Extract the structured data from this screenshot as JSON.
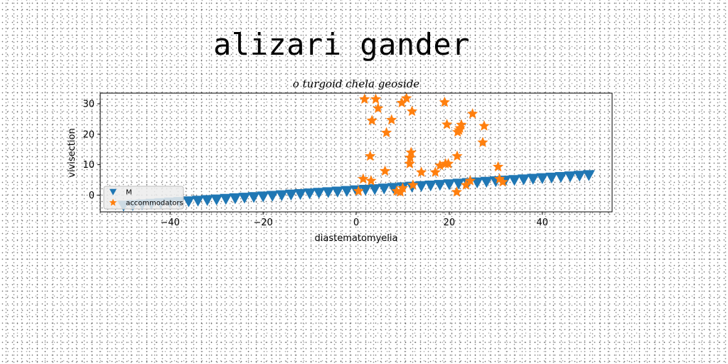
{
  "page_title": "alizari gander",
  "colors": {
    "series_M": "#1f77b4",
    "series_accommodators": "#ff7f0e",
    "axes": "#000000"
  },
  "chart_data": {
    "type": "scatter",
    "title": "o turgoid chela geoside",
    "xlabel": "diastematomyelia",
    "ylabel": "vivisection",
    "xlim": [
      -55,
      55
    ],
    "ylim": [
      -5.5,
      33.5
    ],
    "xticks": [
      -40,
      -20,
      0,
      20,
      40
    ],
    "yticks": [
      0,
      10,
      20,
      30
    ],
    "xtick_labels": [
      "−40",
      "−20",
      "0",
      "20",
      "40"
    ],
    "ytick_labels": [
      "0",
      "10",
      "20",
      "30"
    ],
    "grid": false,
    "legend_position": "lower-left",
    "series": [
      {
        "name": "M",
        "marker": "triangle-down",
        "color": "#1f77b4",
        "x": [
          -50,
          -48,
          -46,
          -44,
          -42,
          -40,
          -38,
          -36,
          -34,
          -32,
          -30,
          -28,
          -26,
          -24,
          -22,
          -20,
          -18,
          -16,
          -14,
          -12,
          -10,
          -8,
          -6,
          -4,
          -2,
          0,
          2,
          4,
          6,
          8,
          10,
          12,
          14,
          16,
          18,
          20,
          22,
          24,
          26,
          28,
          30,
          32,
          34,
          36,
          38,
          40,
          42,
          44,
          46,
          48,
          50
        ],
        "y": [
          -3.5,
          -3.3,
          -3.1,
          -2.9,
          -2.7,
          -2.5,
          -2.3,
          -2.1,
          -1.9,
          -1.7,
          -1.5,
          -1.3,
          -1.1,
          -0.9,
          -0.7,
          -0.5,
          -0.3,
          -0.1,
          0.1,
          0.3,
          0.5,
          0.7,
          0.9,
          1.1,
          1.3,
          1.5,
          1.7,
          1.9,
          2.1,
          2.3,
          2.5,
          2.7,
          2.9,
          3.1,
          3.3,
          3.5,
          3.7,
          3.9,
          4.1,
          4.3,
          4.5,
          4.7,
          4.9,
          5.1,
          5.3,
          5.5,
          5.7,
          5.9,
          6.1,
          6.3,
          6.5
        ]
      },
      {
        "name": "accommodators",
        "marker": "star",
        "color": "#ff7f0e",
        "x": [
          0.5,
          1.5,
          1.8,
          3.0,
          3.2,
          3.4,
          4.2,
          4.7,
          6.2,
          6.5,
          7.6,
          8.7,
          9.5,
          9.8,
          10.0,
          10.8,
          11.5,
          11.6,
          11.8,
          12.0,
          12.2,
          14.0,
          17.0,
          18.0,
          19.0,
          19.2,
          19.5,
          19.8,
          21.6,
          21.7,
          21.8,
          22.1,
          22.3,
          22.6,
          23.6,
          24.5,
          25.0,
          27.2,
          27.5,
          30.5,
          30.8,
          31.5
        ],
        "y": [
          1.3,
          5.3,
          31.5,
          12.8,
          4.7,
          24.5,
          31.5,
          28.5,
          7.9,
          20.5,
          24.7,
          1.3,
          1.0,
          30.3,
          2.3,
          31.8,
          10.3,
          12.3,
          14.0,
          27.5,
          3.3,
          7.5,
          7.5,
          9.7,
          30.5,
          10.3,
          23.2,
          10.3,
          1.0,
          12.8,
          20.7,
          21.3,
          22.0,
          23.1,
          3.3,
          4.7,
          26.7,
          17.3,
          22.7,
          9.3,
          5.3,
          4.3
        ]
      }
    ]
  }
}
